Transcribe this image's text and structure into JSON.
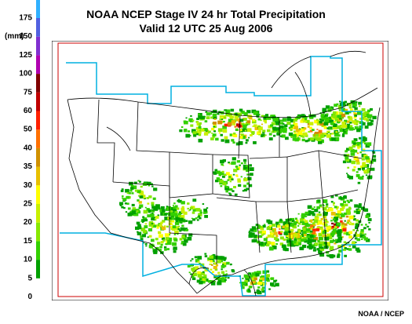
{
  "title": "NOAA NCEP Stage IV 24 hr Total Precipitation",
  "subtitle": "Valid 12 UTC  25 Aug 2006",
  "unit_label": "(mm)",
  "credit": "NOAA / NCEP",
  "legend": {
    "labels": [
      "0",
      "5",
      "10",
      "15",
      "20",
      "25",
      "30",
      "35",
      "40",
      "50",
      "60",
      "75",
      "100",
      "125",
      "150",
      "175"
    ],
    "colors": [
      "#ffffff",
      "#00a000",
      "#33d000",
      "#88e800",
      "#c8f000",
      "#ffff00",
      "#e8c000",
      "#d09000",
      "#ff7000",
      "#ff2000",
      "#c00000",
      "#800000",
      "#b000b0",
      "#8030d0",
      "#5060e0",
      "#30b0ff"
    ]
  },
  "map": {
    "radar_boundary_color": "#00b0e0",
    "frame_color": "#cc0000"
  }
}
